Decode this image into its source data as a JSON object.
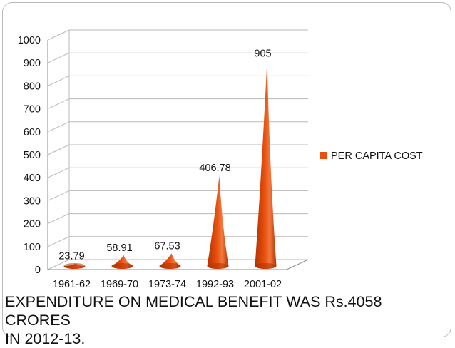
{
  "chart_data": {
    "type": "bar",
    "title": "",
    "xlabel": "",
    "ylabel": "",
    "categories": [
      "1961-62",
      "1969-70",
      "1973-74",
      "1992-93",
      "2001-02"
    ],
    "series": [
      {
        "name": "PER CAPITA COST",
        "values": [
          23.79,
          58.91,
          67.53,
          406.78,
          905
        ]
      }
    ],
    "data_labels": [
      "23.79",
      "58.91",
      "67.53",
      "406.78",
      "905"
    ],
    "ylim": [
      0,
      1000
    ],
    "y_ticks": [
      0,
      100,
      200,
      300,
      400,
      500,
      600,
      700,
      800,
      900,
      1000
    ],
    "grid": true,
    "legend_position": "right",
    "mark_shape": "cone",
    "colors": {
      "series": "#e8500e",
      "series_dark": "#b23200",
      "grid": "#b9b9b9",
      "text": "#111111"
    }
  },
  "caption": "EXPENDITURE ON MEDICAL BENEFIT WAS Rs.4058 CRORES\nIN 2012-13."
}
